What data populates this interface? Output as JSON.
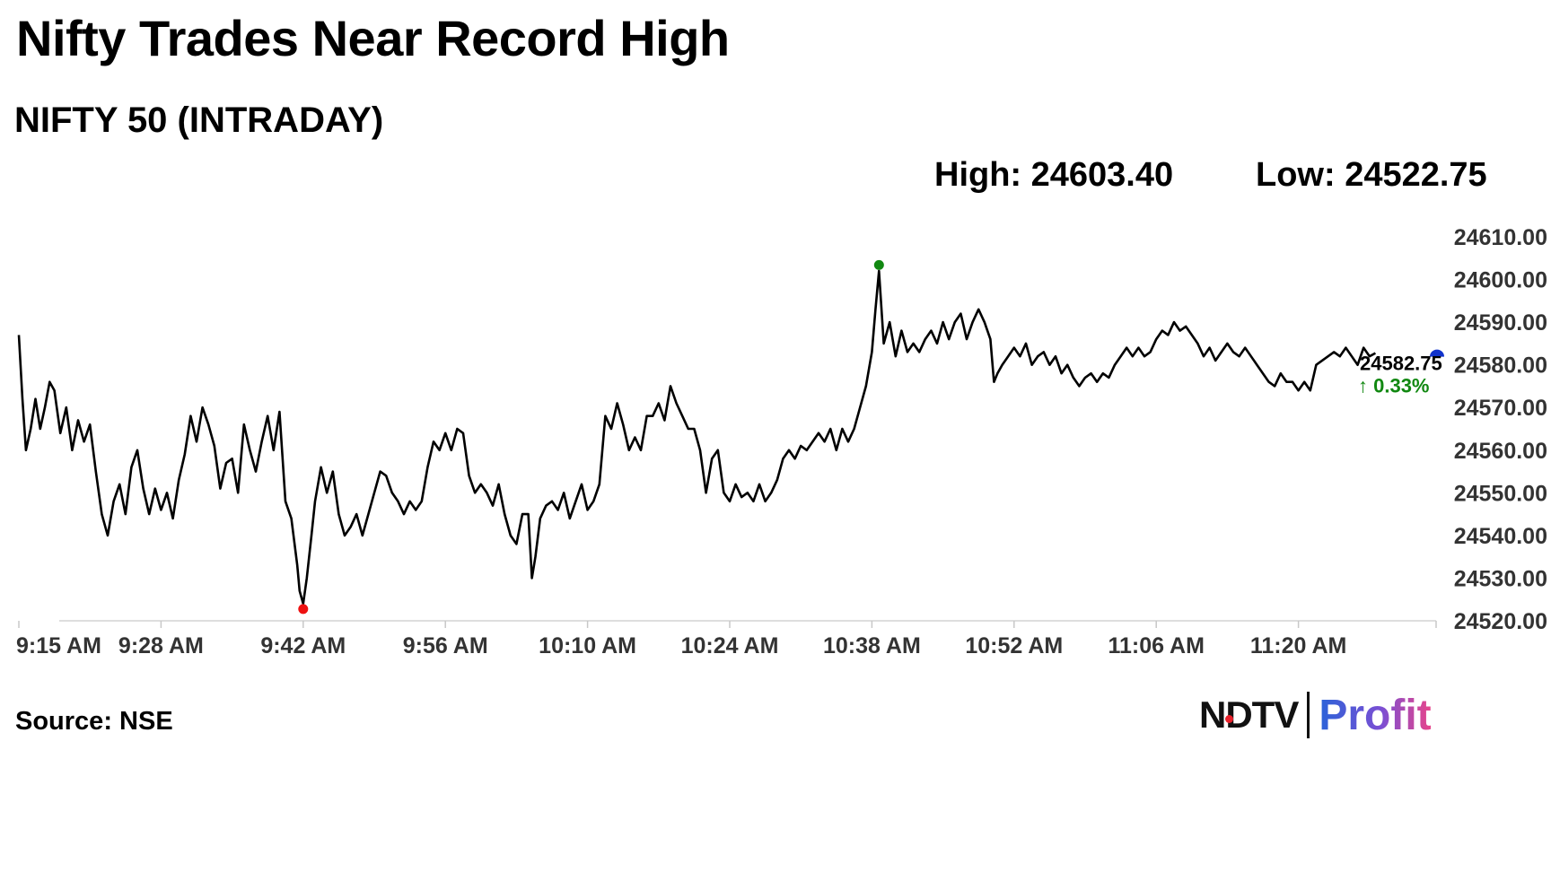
{
  "header": {
    "title": "Nifty Trades Near Record High",
    "subtitle": "NIFTY 50 (INTRADAY)",
    "high_label": "High: 24603.40",
    "low_label": "Low: 24522.75"
  },
  "footer": {
    "source": "Source: NSE",
    "brand_left": "NDTV",
    "brand_right": "Profit"
  },
  "chart_data": {
    "type": "line",
    "x_unit": "minutes",
    "x_start": 0,
    "x_end": 120,
    "ylim": [
      24520,
      24610
    ],
    "y_ticks": [
      "24520.00",
      "24530.00",
      "24540.00",
      "24550.00",
      "24560.00",
      "24570.00",
      "24580.00",
      "24590.00",
      "24600.00",
      "24610.00"
    ],
    "x_ticks": [
      {
        "label": "9:15 AM",
        "t": 0
      },
      {
        "label": "9:28 AM",
        "t": 12
      },
      {
        "label": "9:42 AM",
        "t": 24
      },
      {
        "label": "9:56 AM",
        "t": 36
      },
      {
        "label": "10:10 AM",
        "t": 48
      },
      {
        "label": "10:24 AM",
        "t": 60
      },
      {
        "label": "10:38 AM",
        "t": 72
      },
      {
        "label": "10:52 AM",
        "t": 84
      },
      {
        "label": "11:06 AM",
        "t": 96
      },
      {
        "label": "11:20 AM",
        "t": 108
      }
    ],
    "series": [
      {
        "values": [
          [
            0,
            24587
          ],
          [
            0.3,
            24572
          ],
          [
            0.6,
            24560
          ],
          [
            1,
            24565
          ],
          [
            1.4,
            24572
          ],
          [
            1.8,
            24565
          ],
          [
            2.2,
            24570
          ],
          [
            2.6,
            24576
          ],
          [
            3,
            24574
          ],
          [
            3.5,
            24564
          ],
          [
            4,
            24570
          ],
          [
            4.5,
            24560
          ],
          [
            5,
            24567
          ],
          [
            5.5,
            24562
          ],
          [
            6,
            24566
          ],
          [
            6.5,
            24555
          ],
          [
            7,
            24545
          ],
          [
            7.5,
            24540
          ],
          [
            8,
            24548
          ],
          [
            8.5,
            24552
          ],
          [
            9,
            24545
          ],
          [
            9.5,
            24556
          ],
          [
            10,
            24560
          ],
          [
            10.5,
            24551
          ],
          [
            11,
            24545
          ],
          [
            11.5,
            24551
          ],
          [
            12,
            24546
          ],
          [
            12.5,
            24550
          ],
          [
            13,
            24544
          ],
          [
            13.5,
            24553
          ],
          [
            14,
            24559
          ],
          [
            14.5,
            24568
          ],
          [
            15,
            24562
          ],
          [
            15.5,
            24570
          ],
          [
            16,
            24566
          ],
          [
            16.5,
            24561
          ],
          [
            17,
            24551
          ],
          [
            17.5,
            24557
          ],
          [
            18,
            24558
          ],
          [
            18.5,
            24550
          ],
          [
            19,
            24566
          ],
          [
            19.5,
            24560
          ],
          [
            20,
            24555
          ],
          [
            20.5,
            24562
          ],
          [
            21,
            24568
          ],
          [
            21.5,
            24560
          ],
          [
            22,
            24569
          ],
          [
            22.5,
            24548
          ],
          [
            23,
            24544
          ],
          [
            23.5,
            24533
          ],
          [
            23.7,
            24527
          ],
          [
            24,
            24524
          ],
          [
            24.3,
            24530
          ],
          [
            24.7,
            24540
          ],
          [
            25,
            24548
          ],
          [
            25.5,
            24556
          ],
          [
            26,
            24550
          ],
          [
            26.5,
            24555
          ],
          [
            27,
            24545
          ],
          [
            27.5,
            24540
          ],
          [
            28,
            24542
          ],
          [
            28.5,
            24545
          ],
          [
            29,
            24540
          ],
          [
            29.5,
            24545
          ],
          [
            30,
            24550
          ],
          [
            30.5,
            24555
          ],
          [
            31,
            24554
          ],
          [
            31.5,
            24550
          ],
          [
            32,
            24548
          ],
          [
            32.5,
            24545
          ],
          [
            33,
            24548
          ],
          [
            33.5,
            24546
          ],
          [
            34,
            24548
          ],
          [
            34.5,
            24556
          ],
          [
            35,
            24562
          ],
          [
            35.5,
            24560
          ],
          [
            36,
            24564
          ],
          [
            36.5,
            24560
          ],
          [
            37,
            24565
          ],
          [
            37.5,
            24564
          ],
          [
            38,
            24554
          ],
          [
            38.5,
            24550
          ],
          [
            39,
            24552
          ],
          [
            39.5,
            24550
          ],
          [
            40,
            24547
          ],
          [
            40.5,
            24552
          ],
          [
            41,
            24545
          ],
          [
            41.5,
            24540
          ],
          [
            42,
            24538
          ],
          [
            42.5,
            24545
          ],
          [
            43,
            24545
          ],
          [
            43.3,
            24530
          ],
          [
            43.6,
            24535
          ],
          [
            44,
            24544
          ],
          [
            44.5,
            24547
          ],
          [
            45,
            24548
          ],
          [
            45.5,
            24546
          ],
          [
            46,
            24550
          ],
          [
            46.5,
            24544
          ],
          [
            47,
            24548
          ],
          [
            47.5,
            24552
          ],
          [
            48,
            24546
          ],
          [
            48.5,
            24548
          ],
          [
            49,
            24552
          ],
          [
            49.5,
            24568
          ],
          [
            50,
            24565
          ],
          [
            50.5,
            24571
          ],
          [
            51,
            24566
          ],
          [
            51.5,
            24560
          ],
          [
            52,
            24563
          ],
          [
            52.5,
            24560
          ],
          [
            53,
            24568
          ],
          [
            53.5,
            24568
          ],
          [
            54,
            24571
          ],
          [
            54.5,
            24567
          ],
          [
            55,
            24575
          ],
          [
            55.5,
            24571
          ],
          [
            56,
            24568
          ],
          [
            56.5,
            24565
          ],
          [
            57,
            24565
          ],
          [
            57.5,
            24560
          ],
          [
            58,
            24550
          ],
          [
            58.5,
            24558
          ],
          [
            59,
            24560
          ],
          [
            59.5,
            24550
          ],
          [
            60,
            24548
          ],
          [
            60.5,
            24552
          ],
          [
            61,
            24549
          ],
          [
            61.5,
            24550
          ],
          [
            62,
            24548
          ],
          [
            62.5,
            24552
          ],
          [
            63,
            24548
          ],
          [
            63.5,
            24550
          ],
          [
            64,
            24553
          ],
          [
            64.5,
            24558
          ],
          [
            65,
            24560
          ],
          [
            65.5,
            24558
          ],
          [
            66,
            24561
          ],
          [
            66.5,
            24560
          ],
          [
            67,
            24562
          ],
          [
            67.5,
            24564
          ],
          [
            68,
            24562
          ],
          [
            68.5,
            24565
          ],
          [
            69,
            24560
          ],
          [
            69.5,
            24565
          ],
          [
            70,
            24562
          ],
          [
            70.5,
            24565
          ],
          [
            71,
            24570
          ],
          [
            71.5,
            24575
          ],
          [
            72,
            24583
          ],
          [
            72.3,
            24593
          ],
          [
            72.6,
            24602
          ],
          [
            73,
            24585
          ],
          [
            73.5,
            24590
          ],
          [
            74,
            24582
          ],
          [
            74.5,
            24588
          ],
          [
            75,
            24583
          ],
          [
            75.5,
            24585
          ],
          [
            76,
            24583
          ],
          [
            76.5,
            24586
          ],
          [
            77,
            24588
          ],
          [
            77.5,
            24585
          ],
          [
            78,
            24590
          ],
          [
            78.5,
            24586
          ],
          [
            79,
            24590
          ],
          [
            79.5,
            24592
          ],
          [
            80,
            24586
          ],
          [
            80.5,
            24590
          ],
          [
            81,
            24593
          ],
          [
            81.5,
            24590
          ],
          [
            82,
            24586
          ],
          [
            82.3,
            24576
          ],
          [
            82.6,
            24578
          ],
          [
            83,
            24580
          ],
          [
            83.5,
            24582
          ],
          [
            84,
            24584
          ],
          [
            84.5,
            24582
          ],
          [
            85,
            24585
          ],
          [
            85.5,
            24580
          ],
          [
            86,
            24582
          ],
          [
            86.5,
            24583
          ],
          [
            87,
            24580
          ],
          [
            87.5,
            24582
          ],
          [
            88,
            24578
          ],
          [
            88.5,
            24580
          ],
          [
            89,
            24577
          ],
          [
            89.5,
            24575
          ],
          [
            90,
            24577
          ],
          [
            90.5,
            24578
          ],
          [
            91,
            24576
          ],
          [
            91.5,
            24578
          ],
          [
            92,
            24577
          ],
          [
            92.5,
            24580
          ],
          [
            93,
            24582
          ],
          [
            93.5,
            24584
          ],
          [
            94,
            24582
          ],
          [
            94.5,
            24584
          ],
          [
            95,
            24582
          ],
          [
            95.5,
            24583
          ],
          [
            96,
            24586
          ],
          [
            96.5,
            24588
          ],
          [
            97,
            24587
          ],
          [
            97.5,
            24590
          ],
          [
            98,
            24588
          ],
          [
            98.5,
            24589
          ],
          [
            99,
            24587
          ],
          [
            99.5,
            24585
          ],
          [
            100,
            24582
          ],
          [
            100.5,
            24584
          ],
          [
            101,
            24581
          ],
          [
            101.5,
            24583
          ],
          [
            102,
            24585
          ],
          [
            102.5,
            24583
          ],
          [
            103,
            24582
          ],
          [
            103.5,
            24584
          ],
          [
            104,
            24582
          ],
          [
            104.5,
            24580
          ],
          [
            105,
            24578
          ],
          [
            105.5,
            24576
          ],
          [
            106,
            24575
          ],
          [
            106.5,
            24578
          ],
          [
            107,
            24576
          ],
          [
            107.5,
            24576
          ],
          [
            108,
            24574
          ],
          [
            108.5,
            24576
          ],
          [
            109,
            24574
          ],
          [
            109.5,
            24580
          ],
          [
            110,
            24581
          ],
          [
            110.5,
            24582
          ],
          [
            111,
            24583
          ],
          [
            111.5,
            24582
          ],
          [
            112,
            24584
          ],
          [
            112.5,
            24582
          ],
          [
            113,
            24580
          ],
          [
            113.5,
            24584
          ],
          [
            114,
            24582
          ],
          [
            114.5,
            24582.75
          ]
        ]
      }
    ],
    "low_point": {
      "t": 24,
      "value": 24522.75,
      "color": "#ee1111"
    },
    "high_point": {
      "t": 72.6,
      "value": 24603.4,
      "color": "#118811"
    },
    "current_marker": {
      "color": "#1133cc"
    },
    "last_value": "24582.75",
    "change": "↑ 0.33%",
    "change_color": "#118811"
  }
}
